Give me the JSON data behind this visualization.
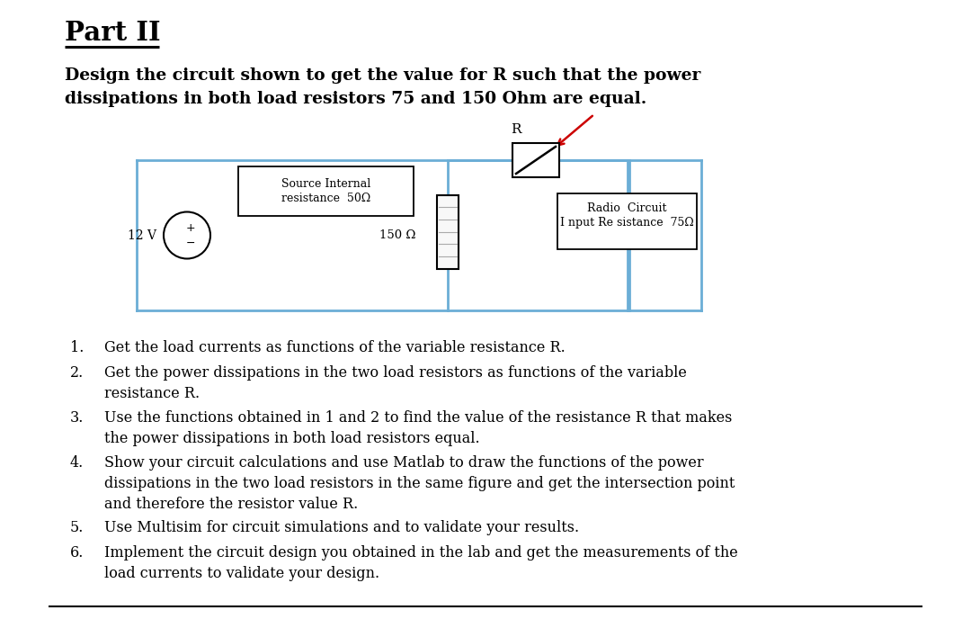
{
  "title": "Part II",
  "subtitle_line1": "Design the circuit shown to get the value for R such that the power",
  "subtitle_line2": "dissipations in both load resistors 75 and 150 Ohm are equal.",
  "items": [
    "Get the load currents as functions of the variable resistance R.",
    "Get the power dissipations in the two load resistors as functions of the variable\nresistance R.",
    "Use the functions obtained in 1 and 2 to find the value of the resistance R that makes\nthe power dissipations in both load resistors equal.",
    "Show your circuit calculations and use Matlab to draw the functions of the power\ndissipations in the two load resistors in the same figure and get the intersection point\nand therefore the resistor value R.",
    "Use Multisim for circuit simulations and to validate your results.",
    "Implement the circuit design you obtained in the lab and get the measurements of the\nload currents to validate your design."
  ],
  "bg_color": "#ffffff",
  "text_color": "#000000",
  "wire_color": "#6baed6",
  "box_color": "#000000",
  "resistor_face": "#f0f0f0",
  "arrow_color": "#cc0000"
}
